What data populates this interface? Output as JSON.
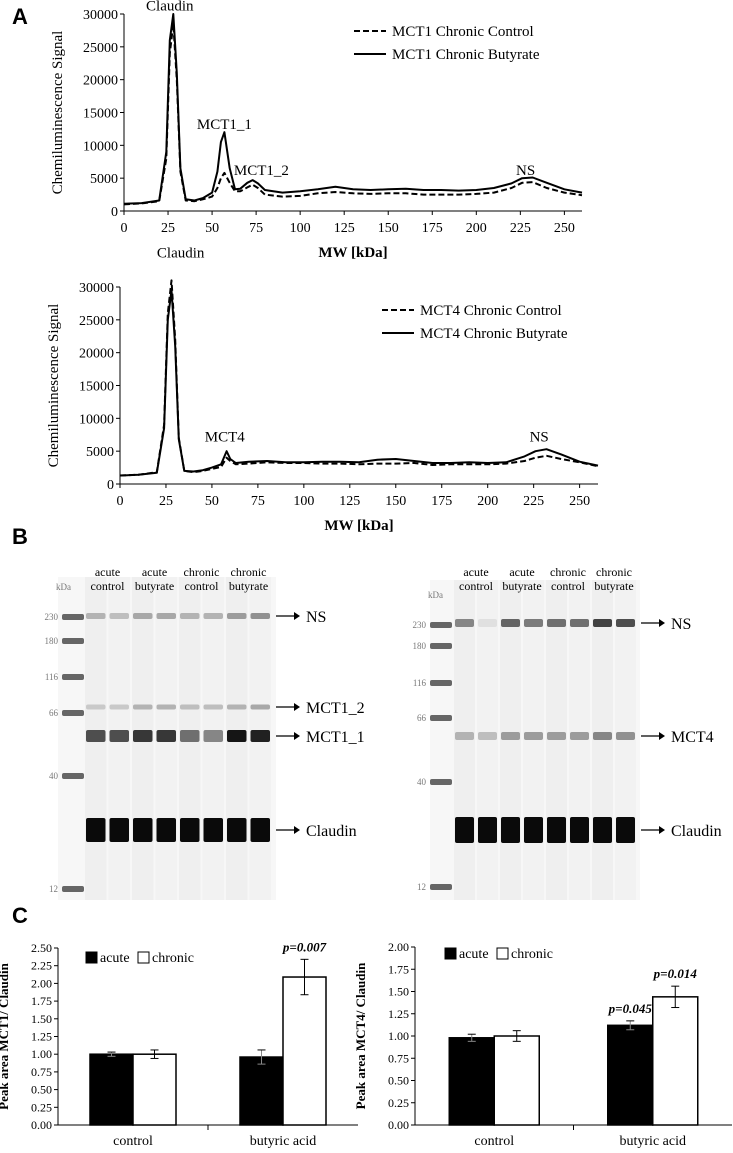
{
  "panels": {
    "a": "A",
    "b": "B",
    "c": "C"
  },
  "chart_data": [
    {
      "id": "A1",
      "type": "line",
      "ylabel": "Chemiluminescence Signal",
      "xlabel": "MW [kDa]",
      "xlim": [
        0,
        260
      ],
      "ylim": [
        0,
        30000
      ],
      "xticks": [
        0,
        25,
        50,
        75,
        100,
        125,
        150,
        175,
        200,
        225,
        250
      ],
      "yticks": [
        0,
        5000,
        10000,
        15000,
        20000,
        25000,
        30000
      ],
      "legend_position": "top-right",
      "series": [
        {
          "name": "MCT1 Chronic Control",
          "style": "dashed",
          "x": [
            0,
            10,
            20,
            24,
            26,
            28,
            30,
            32,
            35,
            40,
            45,
            50,
            53,
            55,
            57,
            60,
            63,
            66,
            70,
            73,
            76,
            80,
            90,
            100,
            110,
            120,
            130,
            140,
            150,
            160,
            170,
            180,
            190,
            200,
            210,
            220,
            226,
            232,
            240,
            250,
            260
          ],
          "y": [
            1000,
            1150,
            1500,
            8000,
            24000,
            28500,
            20000,
            6000,
            1600,
            1500,
            1800,
            2200,
            3500,
            5000,
            5800,
            4300,
            3000,
            3000,
            3600,
            4000,
            3500,
            2500,
            2200,
            2300,
            2700,
            2900,
            2700,
            2600,
            2700,
            2700,
            2500,
            2500,
            2500,
            2600,
            2800,
            3500,
            4300,
            4400,
            3500,
            2800,
            2400
          ]
        },
        {
          "name": "MCT1 Chronic Butyrate",
          "style": "solid",
          "x": [
            0,
            10,
            20,
            24,
            26,
            28,
            30,
            32,
            35,
            40,
            45,
            50,
            53,
            55,
            57,
            60,
            63,
            66,
            70,
            73,
            76,
            80,
            90,
            100,
            110,
            120,
            130,
            140,
            150,
            160,
            170,
            180,
            190,
            200,
            210,
            220,
            226,
            232,
            240,
            250,
            260
          ],
          "y": [
            1100,
            1200,
            1600,
            9000,
            26000,
            30000,
            21000,
            6500,
            1800,
            1600,
            2000,
            2800,
            6000,
            10500,
            12000,
            6500,
            3300,
            3400,
            4300,
            4700,
            4200,
            3200,
            2800,
            3000,
            3300,
            3700,
            3300,
            3200,
            3300,
            3400,
            3200,
            3200,
            3100,
            3200,
            3500,
            4200,
            5000,
            5100,
            4300,
            3300,
            2800
          ]
        }
      ],
      "annotations": [
        {
          "text": "Claudin",
          "x": 26,
          "y": 30500
        },
        {
          "text": "MCT1_1",
          "x": 57,
          "y": 12500
        },
        {
          "text": "MCT1_2",
          "x": 78,
          "y": 5500
        },
        {
          "text": "NS",
          "x": 228,
          "y": 5500
        }
      ]
    },
    {
      "id": "A2",
      "type": "line",
      "ylabel": "Chemiluminescence Signal",
      "xlabel": "MW [kDa]",
      "xlim": [
        0,
        260
      ],
      "ylim": [
        0,
        30000
      ],
      "xticks": [
        0,
        25,
        50,
        75,
        100,
        125,
        150,
        175,
        200,
        225,
        250
      ],
      "yticks": [
        0,
        5000,
        10000,
        15000,
        20000,
        25000,
        30000
      ],
      "legend_position": "top-right",
      "series": [
        {
          "name": "MCT4 Chronic Control",
          "style": "dashed",
          "x": [
            0,
            10,
            20,
            24,
            26,
            28,
            30,
            32,
            35,
            40,
            45,
            50,
            55,
            58,
            60,
            63,
            70,
            80,
            90,
            100,
            110,
            120,
            130,
            140,
            150,
            160,
            170,
            180,
            190,
            200,
            210,
            220,
            226,
            232,
            240,
            250,
            260
          ],
          "y": [
            1300,
            1400,
            1800,
            9000,
            26000,
            31000,
            22000,
            7000,
            2000,
            1800,
            2000,
            2300,
            2600,
            4000,
            3500,
            3000,
            3100,
            3300,
            3200,
            3200,
            3100,
            3100,
            3000,
            3100,
            3100,
            3200,
            2900,
            3000,
            3000,
            3000,
            3100,
            3500,
            4000,
            4300,
            3800,
            3300,
            2700
          ]
        },
        {
          "name": "MCT4 Chronic Butyrate",
          "style": "solid",
          "x": [
            0,
            10,
            20,
            24,
            26,
            28,
            30,
            32,
            35,
            40,
            45,
            50,
            55,
            58,
            60,
            63,
            70,
            80,
            90,
            100,
            110,
            120,
            130,
            140,
            150,
            160,
            170,
            180,
            190,
            200,
            210,
            220,
            226,
            232,
            240,
            250,
            260
          ],
          "y": [
            1300,
            1400,
            1700,
            8500,
            25000,
            29500,
            21000,
            6800,
            2000,
            1900,
            2100,
            2500,
            3000,
            5000,
            3800,
            3200,
            3400,
            3500,
            3300,
            3300,
            3400,
            3400,
            3300,
            3700,
            3800,
            3500,
            3200,
            3200,
            3300,
            3200,
            3300,
            4200,
            5000,
            5300,
            4500,
            3400,
            2800
          ]
        }
      ],
      "annotations": [
        {
          "text": "Claudin",
          "x": 33,
          "y": 34500
        },
        {
          "text": "MCT4",
          "x": 57,
          "y": 6500
        },
        {
          "text": "NS",
          "x": 228,
          "y": 6500
        }
      ]
    },
    {
      "id": "C1",
      "type": "bar",
      "ylabel": "Peak area MCT1/ Claudin",
      "categories": [
        "control",
        "butyric acid"
      ],
      "ylim": [
        0,
        2.5
      ],
      "yticks": [
        "0.00",
        "0.25",
        "0.50",
        "0.75",
        "1.00",
        "1.25",
        "1.50",
        "1.75",
        "2.00",
        "2.25",
        "2.50"
      ],
      "legend_position": "top-left",
      "series": [
        {
          "name": "acute",
          "color": "#000000",
          "values": [
            1.0,
            0.96
          ],
          "errors": [
            0.03,
            0.1
          ],
          "pvalues": [
            "",
            ""
          ]
        },
        {
          "name": "chronic",
          "color": "#ffffff",
          "values": [
            1.0,
            2.09
          ],
          "errors": [
            0.06,
            0.25
          ],
          "pvalues": [
            "",
            "p=0.007"
          ]
        }
      ]
    },
    {
      "id": "C2",
      "type": "bar",
      "ylabel": "Peak area MCT4/ Claudin",
      "categories": [
        "control",
        "butyric acid"
      ],
      "ylim": [
        0,
        2.0
      ],
      "yticks": [
        "0.00",
        "0.25",
        "0.50",
        "0.75",
        "1.00",
        "1.25",
        "1.50",
        "1.75",
        "2.00"
      ],
      "legend_position": "top-left",
      "series": [
        {
          "name": "acute",
          "color": "#000000",
          "values": [
            0.98,
            1.12
          ],
          "errors": [
            0.04,
            0.05
          ],
          "pvalues": [
            "",
            "p=0.045"
          ]
        },
        {
          "name": "chronic",
          "color": "#ffffff",
          "values": [
            1.0,
            1.44
          ],
          "errors": [
            0.06,
            0.12
          ],
          "pvalues": [
            "",
            "p=0.014"
          ]
        }
      ]
    }
  ],
  "blots": [
    {
      "id": "B1",
      "kda_label": "kDa",
      "ladder": [
        {
          "label": "230",
          "kda": 230
        },
        {
          "label": "180",
          "kda": 180
        },
        {
          "label": "116",
          "kda": 116
        },
        {
          "label": "66",
          "kda": 66
        },
        {
          "label": "40",
          "kda": 40
        },
        {
          "label": "12",
          "kda": 12
        }
      ],
      "groups": [
        {
          "line1": "acute",
          "line2": "control"
        },
        {
          "line1": "acute",
          "line2": "butyrate"
        },
        {
          "line1": "chronic",
          "line2": "control"
        },
        {
          "line1": "chronic",
          "line2": "butyrate"
        }
      ],
      "bands": [
        {
          "label": "NS",
          "intensity": [
            0.25,
            0.2,
            0.3,
            0.3,
            0.25,
            0.25,
            0.35,
            0.4
          ]
        },
        {
          "label": "MCT1_2",
          "intensity": [
            0.15,
            0.15,
            0.25,
            0.25,
            0.2,
            0.2,
            0.25,
            0.3
          ]
        },
        {
          "label": "MCT1_1",
          "intensity": [
            0.7,
            0.7,
            0.8,
            0.8,
            0.55,
            0.45,
            0.95,
            0.9
          ]
        },
        {
          "label": "Claudin",
          "intensity": [
            1,
            1,
            1,
            1,
            1,
            1,
            1,
            1
          ]
        }
      ]
    },
    {
      "id": "B2",
      "kda_label": "kDa",
      "ladder": [
        {
          "label": "230",
          "kda": 230
        },
        {
          "label": "180",
          "kda": 180
        },
        {
          "label": "116",
          "kda": 116
        },
        {
          "label": "66",
          "kda": 66
        },
        {
          "label": "40",
          "kda": 40
        },
        {
          "label": "12",
          "kda": 12
        }
      ],
      "groups": [
        {
          "line1": "acute",
          "line2": "control"
        },
        {
          "line1": "acute",
          "line2": "butyrate"
        },
        {
          "line1": "chronic",
          "line2": "control"
        },
        {
          "line1": "chronic",
          "line2": "butyrate"
        }
      ],
      "bands": [
        {
          "label": "NS",
          "intensity": [
            0.45,
            0.05,
            0.6,
            0.5,
            0.55,
            0.55,
            0.75,
            0.7
          ]
        },
        {
          "label": "MCT4",
          "intensity": [
            0.25,
            0.2,
            0.35,
            0.35,
            0.35,
            0.35,
            0.45,
            0.4
          ]
        },
        {
          "label": "Claudin",
          "intensity": [
            1,
            1,
            1,
            1,
            1,
            1,
            1,
            1
          ]
        }
      ]
    }
  ]
}
